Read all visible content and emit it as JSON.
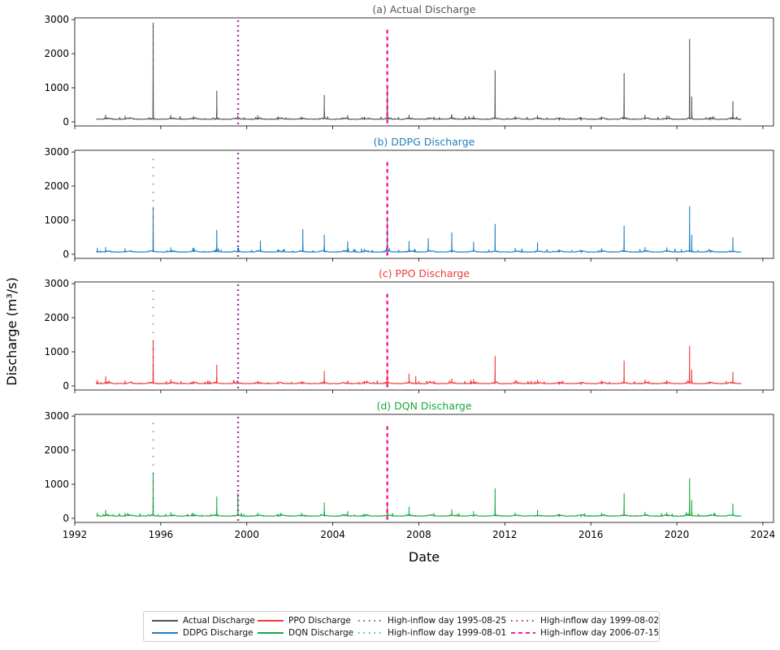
{
  "chart_data": {
    "type": "line",
    "ylabel": "Discharge (m³/s)",
    "xlabel": "Date",
    "xlim": [
      "1992-01-01",
      "2024-06-30"
    ],
    "ylim": [
      -120,
      3050
    ],
    "yticks": [
      0,
      1000,
      2000,
      3000
    ],
    "xticks": [
      "1992",
      "1996",
      "2000",
      "2004",
      "2008",
      "2012",
      "2016",
      "2020",
      "2024"
    ],
    "grid": false,
    "legend_position": "bottom",
    "high_inflow_days": [
      {
        "name": "High-inflow day 1995-08-25",
        "date": "1995-08-25",
        "color": "#8c564b",
        "style": "dotted"
      },
      {
        "name": "High-inflow day 1999-08-01",
        "date": "1999-08-01",
        "color": "#17becf",
        "style": "dotted"
      },
      {
        "name": "High-inflow day 1999-08-02",
        "date": "1999-08-02",
        "color": "#c0168c",
        "style": "dotted"
      },
      {
        "name": "High-inflow day 2006-07-15",
        "date": "2006-07-15",
        "color": "#ff1493",
        "style": "dashed"
      }
    ],
    "panels": [
      {
        "title": "(a) Actual Discharge",
        "series_name": "Actual Discharge",
        "color": "#555555",
        "baseline": 70,
        "peaks": [
          [
            "1993-06-10",
            200
          ],
          [
            "1994-05-05",
            170
          ],
          [
            "1995-08-25",
            2900
          ],
          [
            "1996-06-20",
            190
          ],
          [
            "1997-07-10",
            160
          ],
          [
            "1998-08-10",
            900
          ],
          [
            "1999-08-01",
            180
          ],
          [
            "2000-07-05",
            180
          ],
          [
            "2001-06-15",
            140
          ],
          [
            "2002-07-20",
            150
          ],
          [
            "2003-08-10",
            780
          ],
          [
            "2004-09-10",
            180
          ],
          [
            "2005-06-20",
            140
          ],
          [
            "2006-07-15",
            990
          ],
          [
            "2007-07-20",
            200
          ],
          [
            "2008-09-15",
            140
          ],
          [
            "2009-07-15",
            210
          ],
          [
            "2010-07-20",
            170
          ],
          [
            "2011-07-20",
            1500
          ],
          [
            "2012-06-25",
            160
          ],
          [
            "2013-07-10",
            180
          ],
          [
            "2014-07-15",
            110
          ],
          [
            "2015-07-20",
            100
          ],
          [
            "2016-07-01",
            150
          ],
          [
            "2017-07-20",
            1420
          ],
          [
            "2018-07-10",
            200
          ],
          [
            "2019-07-15",
            180
          ],
          [
            "2020-08-05",
            2420
          ],
          [
            "2020-09-10",
            730
          ],
          [
            "2021-07-25",
            120
          ],
          [
            "2022-08-10",
            600
          ]
        ]
      },
      {
        "title": "(b) DDPG Discharge",
        "series_name": "DDPG Discharge",
        "color": "#1f7fc0",
        "baseline": 60,
        "peaks": [
          [
            "1993-01-20",
            180
          ],
          [
            "1993-06-10",
            200
          ],
          [
            "1994-05-05",
            170
          ],
          [
            "1995-08-25",
            1380
          ],
          [
            "1996-06-20",
            190
          ],
          [
            "1997-07-10",
            160
          ],
          [
            "1998-08-10",
            700
          ],
          [
            "1999-08-01",
            180
          ],
          [
            "2000-08-20",
            390
          ],
          [
            "2001-06-15",
            140
          ],
          [
            "2002-08-10",
            730
          ],
          [
            "2003-08-10",
            560
          ],
          [
            "2004-09-10",
            370
          ],
          [
            "2005-06-20",
            150
          ],
          [
            "2006-07-15",
            1080
          ],
          [
            "2007-07-20",
            380
          ],
          [
            "2008-06-10",
            460
          ],
          [
            "2009-07-15",
            630
          ],
          [
            "2010-07-20",
            360
          ],
          [
            "2011-07-20",
            880
          ],
          [
            "2012-06-25",
            180
          ],
          [
            "2013-07-10",
            340
          ],
          [
            "2014-07-15",
            130
          ],
          [
            "2015-07-20",
            110
          ],
          [
            "2016-07-01",
            170
          ],
          [
            "2017-07-20",
            830
          ],
          [
            "2018-07-10",
            200
          ],
          [
            "2019-07-15",
            190
          ],
          [
            "2020-08-05",
            1400
          ],
          [
            "2020-09-10",
            560
          ],
          [
            "2022-08-10",
            490
          ]
        ]
      },
      {
        "title": "(c) PPO Discharge",
        "series_name": "PPO Discharge",
        "color": "#ee3a3a",
        "baseline": 60,
        "peaks": [
          [
            "1993-01-20",
            160
          ],
          [
            "1993-06-10",
            270
          ],
          [
            "1994-05-05",
            150
          ],
          [
            "1995-08-25",
            1320
          ],
          [
            "1996-06-20",
            180
          ],
          [
            "1997-07-10",
            130
          ],
          [
            "1998-08-10",
            610
          ],
          [
            "1999-08-01",
            160
          ],
          [
            "2000-07-05",
            140
          ],
          [
            "2001-06-15",
            120
          ],
          [
            "2002-07-20",
            130
          ],
          [
            "2003-08-10",
            430
          ],
          [
            "2004-09-10",
            150
          ],
          [
            "2005-06-20",
            120
          ],
          [
            "2006-07-15",
            400
          ],
          [
            "2007-07-20",
            350
          ],
          [
            "2007-11-10",
            280
          ],
          [
            "2008-09-15",
            140
          ],
          [
            "2009-07-15",
            210
          ],
          [
            "2010-07-20",
            190
          ],
          [
            "2011-07-20",
            870
          ],
          [
            "2012-06-25",
            160
          ],
          [
            "2013-07-10",
            170
          ],
          [
            "2014-07-15",
            110
          ],
          [
            "2015-07-20",
            100
          ],
          [
            "2016-07-01",
            150
          ],
          [
            "2017-07-20",
            730
          ],
          [
            "2018-07-10",
            170
          ],
          [
            "2019-07-15",
            160
          ],
          [
            "2020-08-05",
            1170
          ],
          [
            "2020-09-10",
            470
          ],
          [
            "2022-08-10",
            410
          ]
        ]
      },
      {
        "title": "(d) DQN Discharge",
        "series_name": "DQN Discharge",
        "color": "#1aaa3c",
        "baseline": 60,
        "peaks": [
          [
            "1993-01-20",
            160
          ],
          [
            "1993-06-10",
            240
          ],
          [
            "1994-05-05",
            150
          ],
          [
            "1995-08-25",
            1330
          ],
          [
            "1996-06-20",
            170
          ],
          [
            "1997-07-10",
            140
          ],
          [
            "1998-08-10",
            630
          ],
          [
            "1999-08-01",
            730
          ],
          [
            "2000-07-05",
            150
          ],
          [
            "2001-06-15",
            120
          ],
          [
            "2002-07-20",
            150
          ],
          [
            "2003-08-10",
            450
          ],
          [
            "2004-09-10",
            200
          ],
          [
            "2005-06-20",
            120
          ],
          [
            "2006-07-15",
            420
          ],
          [
            "2007-07-20",
            330
          ],
          [
            "2008-09-15",
            150
          ],
          [
            "2009-07-15",
            250
          ],
          [
            "2010-07-20",
            200
          ],
          [
            "2011-07-20",
            870
          ],
          [
            "2012-06-25",
            160
          ],
          [
            "2013-07-10",
            240
          ],
          [
            "2014-07-15",
            120
          ],
          [
            "2015-07-20",
            100
          ],
          [
            "2016-07-01",
            150
          ],
          [
            "2017-07-20",
            730
          ],
          [
            "2018-07-10",
            180
          ],
          [
            "2019-07-15",
            170
          ],
          [
            "2020-08-05",
            1160
          ],
          [
            "2020-09-10",
            530
          ],
          [
            "2022-08-10",
            420
          ]
        ]
      }
    ],
    "series_start": "1993-01-01",
    "series_end": "2022-12-31"
  },
  "legend": {
    "items": [
      {
        "label": "Actual Discharge",
        "color": "#555555",
        "style": "solid"
      },
      {
        "label": "DDPG Discharge",
        "color": "#1f7fc0",
        "style": "solid"
      },
      {
        "label": "PPO Discharge",
        "color": "#ee3a3a",
        "style": "solid"
      },
      {
        "label": "DQN Discharge",
        "color": "#1aaa3c",
        "style": "solid"
      },
      {
        "label": "High-inflow day 1995-08-25",
        "color": "#8c564b",
        "style": "dotted"
      },
      {
        "label": "High-inflow day 1999-08-01",
        "color": "#17becf",
        "style": "dotted"
      },
      {
        "label": "High-inflow day 1999-08-02",
        "color": "#c0168c",
        "style": "dotted"
      },
      {
        "label": "High-inflow day 2006-07-15",
        "color": "#ff1493",
        "style": "dashed"
      }
    ]
  }
}
